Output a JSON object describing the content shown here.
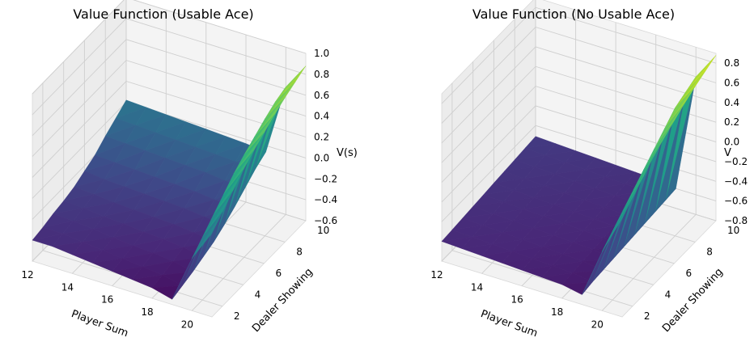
{
  "chart_data": [
    {
      "type": "surface3d",
      "title": "Value Function (Usable Ace)",
      "xlabel": "Player Sum",
      "ylabel": "Dealer Showing",
      "zlabel": "V(s)",
      "xticks": [
        12,
        14,
        16,
        18,
        20
      ],
      "yticks": [
        2,
        4,
        6,
        8,
        10
      ],
      "zticks": [
        "−0.6",
        "−0.4",
        "−0.2",
        "0.0",
        "0.2",
        "0.4",
        "0.6",
        "0.8",
        "1.0"
      ],
      "xlim": [
        12,
        21
      ],
      "ylim": [
        1,
        10
      ],
      "zlim": [
        -0.6,
        1.0
      ],
      "x": [
        12,
        13,
        14,
        15,
        16,
        17,
        18,
        19,
        20,
        21
      ],
      "y": [
        1,
        2,
        3,
        4,
        5,
        6,
        7,
        8,
        9,
        10
      ],
      "z": [
        [
          -0.4,
          -0.38,
          -0.35,
          -0.33,
          -0.3,
          -0.25,
          -0.2,
          -0.12,
          -0.05,
          0.02
        ],
        [
          -0.4,
          -0.38,
          -0.36,
          -0.34,
          -0.31,
          -0.27,
          -0.21,
          -0.13,
          -0.06,
          0.01
        ],
        [
          -0.42,
          -0.4,
          -0.38,
          -0.36,
          -0.33,
          -0.28,
          -0.22,
          -0.14,
          -0.07,
          0.0
        ],
        [
          -0.44,
          -0.42,
          -0.4,
          -0.37,
          -0.34,
          -0.29,
          -0.23,
          -0.15,
          -0.08,
          -0.01
        ],
        [
          -0.46,
          -0.44,
          -0.42,
          -0.39,
          -0.35,
          -0.3,
          -0.24,
          -0.16,
          -0.09,
          -0.02
        ],
        [
          -0.48,
          -0.46,
          -0.43,
          -0.4,
          -0.36,
          -0.31,
          -0.25,
          -0.17,
          -0.1,
          -0.03
        ],
        [
          -0.5,
          -0.48,
          -0.45,
          -0.42,
          -0.38,
          -0.33,
          -0.27,
          -0.19,
          -0.11,
          -0.04
        ],
        [
          -0.55,
          -0.52,
          -0.49,
          -0.45,
          -0.41,
          -0.35,
          -0.28,
          -0.2,
          -0.12,
          -0.06
        ],
        [
          -0.1,
          0.0,
          0.1,
          0.2,
          0.3,
          0.38,
          0.45,
          0.52,
          0.58,
          0.62
        ],
        [
          0.2,
          0.3,
          0.4,
          0.5,
          0.58,
          0.65,
          0.72,
          0.78,
          0.83,
          0.88
        ]
      ]
    },
    {
      "type": "surface3d",
      "title": "Value Function (No Usable Ace)",
      "xlabel": "Player Sum",
      "ylabel": "Dealer Showing",
      "zlabel": "V",
      "xticks": [
        12,
        14,
        16,
        18,
        20
      ],
      "yticks": [
        2,
        4,
        6,
        8,
        10
      ],
      "zticks": [
        "−0.8",
        "−0.6",
        "−0.4",
        "−0.2",
        "0.0",
        "0.2",
        "0.4",
        "0.6",
        "0.8"
      ],
      "xlim": [
        12,
        21
      ],
      "ylim": [
        1,
        10
      ],
      "zlim": [
        -0.8,
        0.9
      ],
      "x": [
        12,
        13,
        14,
        15,
        16,
        17,
        18,
        19,
        20,
        21
      ],
      "y": [
        1,
        2,
        3,
        4,
        5,
        6,
        7,
        8,
        9,
        10
      ],
      "z": [
        [
          -0.6,
          -0.59,
          -0.58,
          -0.57,
          -0.56,
          -0.55,
          -0.54,
          -0.53,
          -0.52,
          -0.51
        ],
        [
          -0.61,
          -0.6,
          -0.59,
          -0.58,
          -0.57,
          -0.56,
          -0.55,
          -0.54,
          -0.53,
          -0.52
        ],
        [
          -0.62,
          -0.61,
          -0.6,
          -0.59,
          -0.58,
          -0.57,
          -0.56,
          -0.55,
          -0.54,
          -0.53
        ],
        [
          -0.63,
          -0.62,
          -0.61,
          -0.6,
          -0.59,
          -0.58,
          -0.57,
          -0.56,
          -0.55,
          -0.54
        ],
        [
          -0.64,
          -0.63,
          -0.62,
          -0.61,
          -0.6,
          -0.59,
          -0.58,
          -0.57,
          -0.56,
          -0.55
        ],
        [
          -0.65,
          -0.64,
          -0.63,
          -0.62,
          -0.61,
          -0.6,
          -0.59,
          -0.58,
          -0.57,
          -0.56
        ],
        [
          -0.66,
          -0.65,
          -0.64,
          -0.63,
          -0.62,
          -0.61,
          -0.6,
          -0.59,
          -0.58,
          -0.57
        ],
        [
          -0.7,
          -0.68,
          -0.67,
          -0.66,
          -0.65,
          -0.64,
          -0.63,
          -0.62,
          -0.61,
          -0.6
        ],
        [
          -0.2,
          -0.1,
          0.0,
          0.1,
          0.2,
          0.3,
          0.4,
          0.5,
          0.55,
          0.6
        ],
        [
          0.2,
          0.3,
          0.4,
          0.5,
          0.58,
          0.65,
          0.72,
          0.78,
          0.83,
          0.88
        ]
      ]
    }
  ]
}
